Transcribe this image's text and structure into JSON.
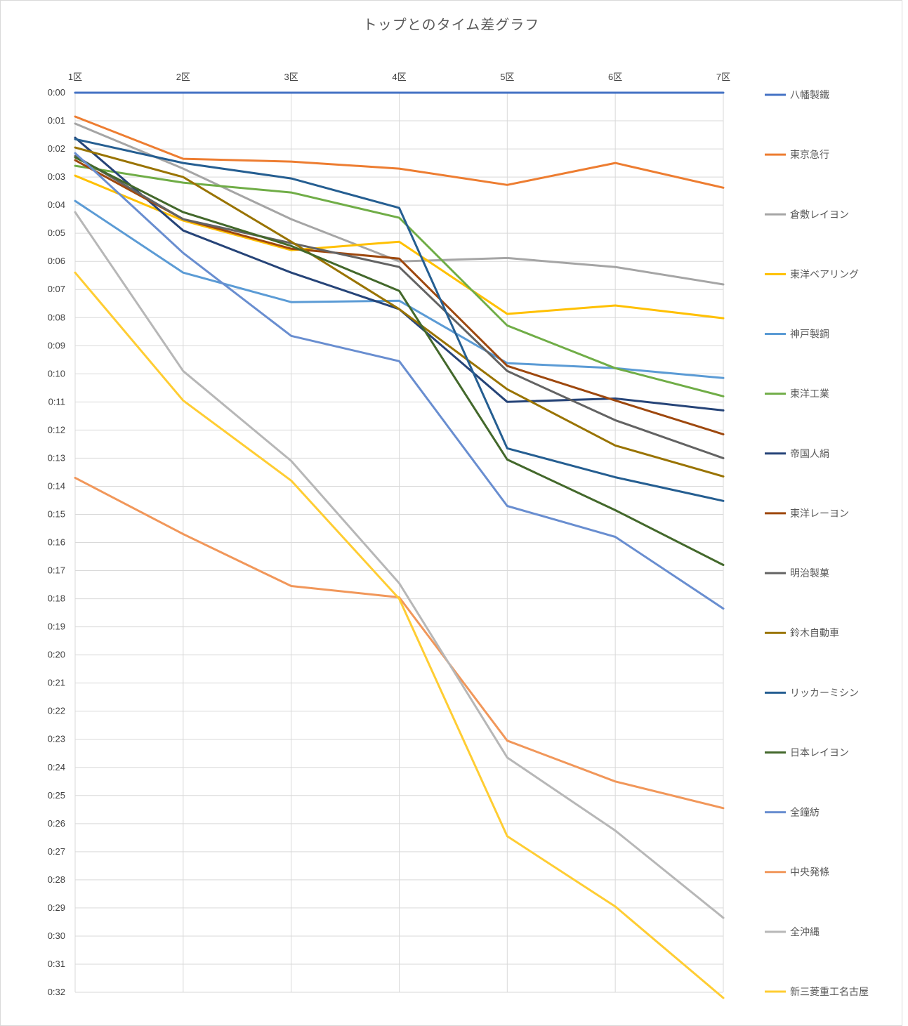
{
  "chart_data": {
    "type": "line",
    "title": "トップとのタイム差グラフ",
    "xlabel": "",
    "ylabel": "",
    "categories": [
      "1区",
      "2区",
      "3区",
      "4区",
      "5区",
      "6区",
      "7区"
    ],
    "x_axis_position": "top",
    "y_inverted": true,
    "y_unit": "minutes",
    "ylim": [
      0,
      32
    ],
    "y_ticks": [
      "0:00",
      "0:01",
      "0:02",
      "0:03",
      "0:04",
      "0:05",
      "0:06",
      "0:07",
      "0:08",
      "0:09",
      "0:10",
      "0:11",
      "0:12",
      "0:13",
      "0:14",
      "0:15",
      "0:16",
      "0:17",
      "0:18",
      "0:19",
      "0:20",
      "0:21",
      "0:22",
      "0:23",
      "0:24",
      "0:25",
      "0:26",
      "0:27",
      "0:28",
      "0:29",
      "0:30",
      "0:31",
      "0:32"
    ],
    "grid": true,
    "legend_position": "right",
    "series": [
      {
        "name": "八幡製鐵",
        "color": "#4472C4",
        "values": [
          0,
          0,
          0,
          0,
          0,
          0,
          0
        ]
      },
      {
        "name": "東京急行",
        "color": "#ED7D31",
        "values": [
          0.85,
          2.35,
          2.45,
          2.7,
          3.28,
          2.5,
          3.38
        ]
      },
      {
        "name": "倉敷レイヨン",
        "color": "#A5A5A5",
        "values": [
          1.1,
          2.7,
          4.5,
          6.0,
          5.88,
          6.2,
          6.82
        ]
      },
      {
        "name": "東洋ベアリング",
        "color": "#FFC000",
        "values": [
          2.95,
          4.55,
          5.6,
          5.3,
          7.87,
          7.57,
          8.02
        ]
      },
      {
        "name": "神戸製鋼",
        "color": "#5B9BD5",
        "values": [
          3.85,
          6.4,
          7.45,
          7.4,
          9.62,
          9.8,
          10.15
        ]
      },
      {
        "name": "東洋工業",
        "color": "#70AD47",
        "values": [
          2.6,
          3.2,
          3.55,
          4.45,
          8.28,
          9.8,
          10.8
        ]
      },
      {
        "name": "帝国人絹",
        "color": "#264478",
        "values": [
          1.6,
          4.9,
          6.4,
          7.7,
          11.0,
          10.88,
          11.3
        ]
      },
      {
        "name": "東洋レーヨン",
        "color": "#9E480E",
        "values": [
          2.4,
          4.5,
          5.55,
          5.9,
          9.72,
          10.95,
          12.15
        ]
      },
      {
        "name": "明治製菓",
        "color": "#636363",
        "values": [
          2.25,
          4.5,
          5.35,
          6.2,
          9.9,
          11.65,
          13.0
        ]
      },
      {
        "name": "鈴木自動車",
        "color": "#997300",
        "values": [
          1.95,
          3.0,
          5.3,
          7.7,
          10.55,
          12.55,
          13.65
        ]
      },
      {
        "name": "リッカーミシン",
        "color": "#255E91",
        "values": [
          1.65,
          2.5,
          3.05,
          4.1,
          12.65,
          13.68,
          14.52
        ]
      },
      {
        "name": "日本レイヨン",
        "color": "#43682B",
        "values": [
          2.3,
          4.25,
          5.45,
          7.05,
          13.05,
          14.85,
          16.8
        ]
      },
      {
        "name": "全鐘紡",
        "color": "#698ED0",
        "values": [
          2.15,
          5.7,
          8.65,
          9.55,
          14.7,
          15.8,
          18.35
        ]
      },
      {
        "name": "中央発條",
        "color": "#F1975A",
        "values": [
          13.7,
          15.7,
          17.55,
          17.95,
          23.05,
          24.5,
          25.45
        ]
      },
      {
        "name": "全沖縄",
        "color": "#B7B7B7",
        "values": [
          4.25,
          9.9,
          13.1,
          17.45,
          23.65,
          26.25,
          29.35
        ]
      },
      {
        "name": "新三菱重工名古屋",
        "color": "#FFCD33",
        "values": [
          6.4,
          10.95,
          13.8,
          18.0,
          26.45,
          28.95,
          32.2
        ]
      }
    ]
  }
}
